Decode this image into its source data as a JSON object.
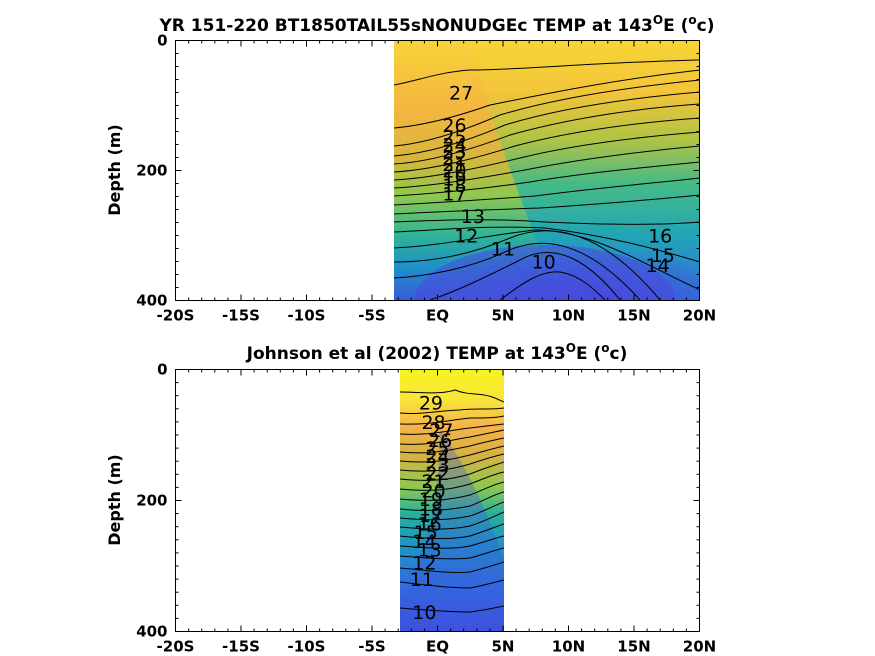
{
  "chart_data": [
    {
      "type": "heatmap",
      "title_main": "YR 151-220 BT1850TAIL55sNONUDGEc TEMP at 143",
      "title_sup": "O",
      "title_tail": "E (",
      "title_sup2": "o",
      "title_end": "c)",
      "ylabel": "Depth (m)",
      "xticks": [
        "-20S",
        "-15S",
        "-10S",
        "-5S",
        "EQ",
        "5N",
        "10N",
        "15N",
        "20N"
      ],
      "yticks": [
        "0",
        "200",
        "400"
      ],
      "xlim": [
        -20,
        20
      ],
      "ylim": [
        0,
        400
      ],
      "data_extent": {
        "lat": [
          -3,
          20
        ],
        "depth": [
          0,
          400
        ]
      },
      "contour_labels": [
        {
          "v": "27",
          "lat": 1.8,
          "d": 80
        },
        {
          "v": "26",
          "lat": 1.3,
          "d": 130
        },
        {
          "v": "25",
          "lat": 1.3,
          "d": 148
        },
        {
          "v": "24",
          "lat": 1.3,
          "d": 160
        },
        {
          "v": "23",
          "lat": 1.3,
          "d": 170
        },
        {
          "v": "22",
          "lat": 1.3,
          "d": 180
        },
        {
          "v": "21",
          "lat": 1.3,
          "d": 190
        },
        {
          "v": "20",
          "lat": 1.3,
          "d": 200
        },
        {
          "v": "19",
          "lat": 1.3,
          "d": 212
        },
        {
          "v": "18",
          "lat": 1.3,
          "d": 222
        },
        {
          "v": "17",
          "lat": 1.3,
          "d": 235
        },
        {
          "v": "16",
          "lat": 17.0,
          "d": 300
        },
        {
          "v": "15",
          "lat": 17.2,
          "d": 330
        },
        {
          "v": "14",
          "lat": 16.8,
          "d": 345
        },
        {
          "v": "13",
          "lat": 2.7,
          "d": 270
        },
        {
          "v": "12",
          "lat": 2.2,
          "d": 300
        },
        {
          "v": "11",
          "lat": 5.0,
          "d": 320
        },
        {
          "v": "10",
          "lat": 8.1,
          "d": 340
        }
      ]
    },
    {
      "type": "heatmap",
      "title_main": "Johnson et al (2002) TEMP at 143",
      "title_sup": "O",
      "title_tail": "E (",
      "title_sup2": "o",
      "title_end": "c)",
      "ylabel": "Depth (m)",
      "xticks": [
        "-20S",
        "-15S",
        "-10S",
        "-5S",
        "EQ",
        "5N",
        "10N",
        "15N",
        "20N"
      ],
      "yticks": [
        "0",
        "200",
        "400"
      ],
      "xlim": [
        -20,
        20
      ],
      "ylim": [
        0,
        400
      ],
      "data_extent": {
        "lat": [
          -2.6,
          5.0
        ],
        "depth": [
          0,
          400
        ]
      },
      "contour_labels": [
        {
          "v": "29",
          "lat": -0.5,
          "d": 50
        },
        {
          "v": "28",
          "lat": -0.3,
          "d": 80
        },
        {
          "v": "27",
          "lat": 0.3,
          "d": 92
        },
        {
          "v": "26",
          "lat": 0.2,
          "d": 108
        },
        {
          "v": "25",
          "lat": 0.0,
          "d": 120
        },
        {
          "v": "24",
          "lat": 0.0,
          "d": 132
        },
        {
          "v": "23",
          "lat": 0.0,
          "d": 145
        },
        {
          "v": "22",
          "lat": 0.0,
          "d": 158
        },
        {
          "v": "21",
          "lat": -0.3,
          "d": 170
        },
        {
          "v": "20",
          "lat": -0.3,
          "d": 185
        },
        {
          "v": "19",
          "lat": -0.5,
          "d": 198
        },
        {
          "v": "18",
          "lat": -0.5,
          "d": 212
        },
        {
          "v": "17",
          "lat": -0.5,
          "d": 222
        },
        {
          "v": "16",
          "lat": -0.6,
          "d": 235
        },
        {
          "v": "15",
          "lat": -0.9,
          "d": 248
        },
        {
          "v": "14",
          "lat": -1.0,
          "d": 262
        },
        {
          "v": "13",
          "lat": -0.6,
          "d": 275
        },
        {
          "v": "12",
          "lat": -1.0,
          "d": 295
        },
        {
          "v": "11",
          "lat": -1.2,
          "d": 320
        },
        {
          "v": "10",
          "lat": -1.0,
          "d": 370
        }
      ]
    }
  ]
}
